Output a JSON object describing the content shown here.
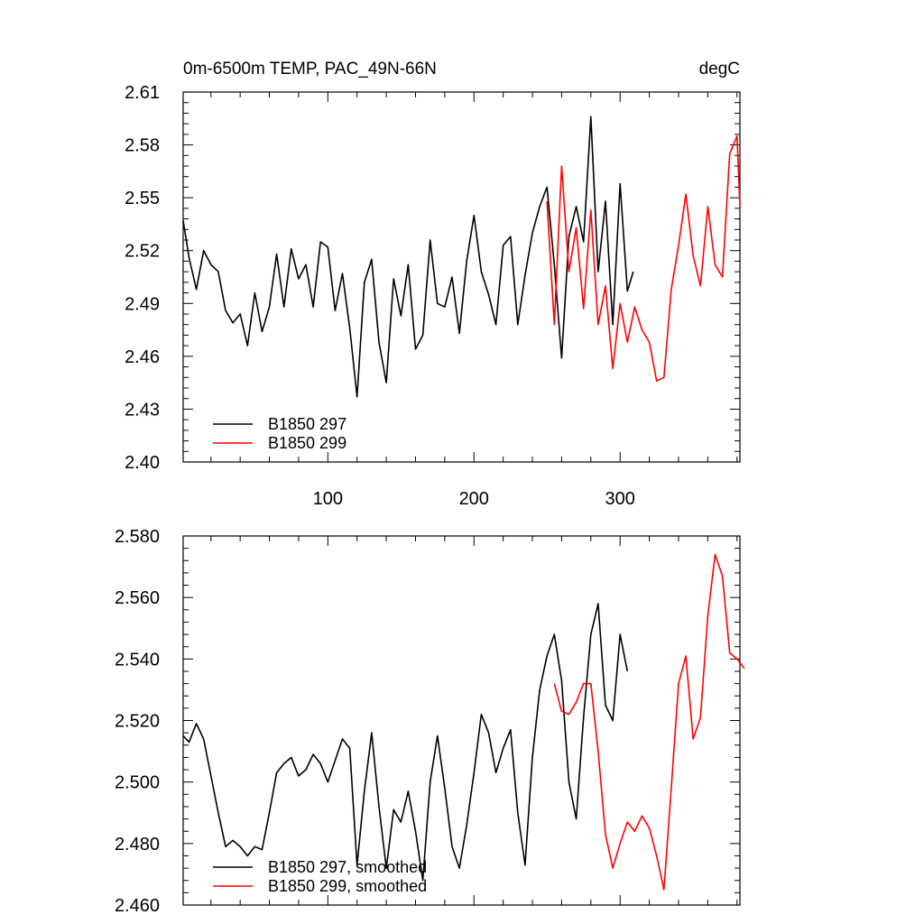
{
  "chart_data": [
    {
      "type": "line",
      "title": "0m-6500m TEMP, PAC_49N-66N",
      "units": "degC",
      "xlim": [
        1,
        382
      ],
      "ylim": [
        2.4,
        2.61
      ],
      "x_ticks": [
        100,
        200,
        300
      ],
      "y_ticks": [
        "2.40",
        "2.43",
        "2.46",
        "2.49",
        "2.52",
        "2.55",
        "2.58",
        "2.61"
      ],
      "legend": "bottom-left",
      "series": [
        {
          "name": "B1850 297",
          "color": "#000000",
          "x": [
            1,
            5,
            10,
            15,
            20,
            25,
            30,
            35,
            40,
            45,
            50,
            55,
            60,
            65,
            70,
            75,
            80,
            85,
            90,
            95,
            100,
            105,
            110,
            115,
            120,
            125,
            130,
            135,
            140,
            145,
            150,
            155,
            160,
            165,
            170,
            175,
            180,
            185,
            190,
            195,
            200,
            205,
            210,
            215,
            220,
            225,
            230,
            235,
            240,
            245,
            250,
            255,
            260,
            265,
            270,
            275,
            280,
            285,
            290,
            295,
            300,
            305,
            309
          ],
          "values": [
            2.537,
            2.516,
            2.498,
            2.52,
            2.512,
            2.508,
            2.486,
            2.479,
            2.484,
            2.466,
            2.496,
            2.474,
            2.488,
            2.518,
            2.488,
            2.521,
            2.504,
            2.512,
            2.488,
            2.525,
            2.522,
            2.486,
            2.507,
            2.476,
            2.437,
            2.502,
            2.515,
            2.468,
            2.445,
            2.504,
            2.483,
            2.512,
            2.464,
            2.472,
            2.526,
            2.49,
            2.488,
            2.505,
            2.473,
            2.514,
            2.54,
            2.508,
            2.495,
            2.478,
            2.523,
            2.528,
            2.478,
            2.506,
            2.53,
            2.545,
            2.556,
            2.512,
            2.459,
            2.528,
            2.545,
            2.525,
            2.596,
            2.508,
            2.548,
            2.478,
            2.558,
            2.497,
            2.508
          ]
        },
        {
          "name": "B1850 299",
          "color": "#ff0000",
          "x": [
            250,
            255,
            260,
            265,
            270,
            275,
            280,
            285,
            290,
            295,
            300,
            305,
            310,
            315,
            320,
            325,
            330,
            335,
            340,
            345,
            350,
            355,
            360,
            365,
            370,
            375,
            380,
            382
          ],
          "values": [
            2.548,
            2.478,
            2.568,
            2.508,
            2.533,
            2.487,
            2.543,
            2.478,
            2.5,
            2.453,
            2.49,
            2.468,
            2.488,
            2.475,
            2.468,
            2.446,
            2.448,
            2.498,
            2.523,
            2.552,
            2.517,
            2.5,
            2.545,
            2.512,
            2.505,
            2.575,
            2.585,
            2.545
          ]
        }
      ]
    },
    {
      "type": "line",
      "xlim": [
        1,
        382
      ],
      "ylim": [
        2.46,
        2.58
      ],
      "y_ticks": [
        "2.460",
        "2.480",
        "2.500",
        "2.520",
        "2.540",
        "2.560",
        "2.580"
      ],
      "legend": "bottom-left",
      "series": [
        {
          "name": "B1850 297, smoothed",
          "color": "#000000",
          "x": [
            1,
            5,
            10,
            15,
            20,
            25,
            30,
            35,
            40,
            45,
            50,
            55,
            60,
            65,
            70,
            75,
            80,
            85,
            90,
            95,
            100,
            105,
            110,
            115,
            120,
            125,
            130,
            135,
            140,
            145,
            150,
            155,
            160,
            165,
            170,
            175,
            180,
            185,
            190,
            195,
            200,
            205,
            210,
            215,
            220,
            225,
            230,
            235,
            240,
            245,
            250,
            255,
            260,
            265,
            270,
            275,
            280,
            285,
            290,
            295,
            300,
            305
          ],
          "values": [
            2.515,
            2.513,
            2.519,
            2.514,
            2.502,
            2.49,
            2.479,
            2.481,
            2.479,
            2.476,
            2.479,
            2.478,
            2.49,
            2.503,
            2.506,
            2.508,
            2.502,
            2.504,
            2.509,
            2.506,
            2.5,
            2.507,
            2.514,
            2.511,
            2.473,
            2.497,
            2.516,
            2.492,
            2.472,
            2.491,
            2.487,
            2.497,
            2.484,
            2.468,
            2.5,
            2.515,
            2.498,
            2.479,
            2.472,
            2.486,
            2.503,
            2.522,
            2.516,
            2.503,
            2.511,
            2.517,
            2.49,
            2.473,
            2.508,
            2.53,
            2.541,
            2.548,
            2.533,
            2.5,
            2.488,
            2.521,
            2.548,
            2.558,
            2.525,
            2.52,
            2.548,
            2.536
          ]
        },
        {
          "name": "B1850 299, smoothed",
          "color": "#ff0000",
          "x": [
            255,
            260,
            265,
            270,
            275,
            280,
            285,
            290,
            295,
            300,
            305,
            310,
            315,
            320,
            325,
            330,
            335,
            340,
            345,
            350,
            355,
            360,
            365,
            370,
            375,
            380,
            385
          ],
          "values": [
            2.532,
            2.523,
            2.522,
            2.526,
            2.532,
            2.532,
            2.51,
            2.483,
            2.472,
            2.48,
            2.487,
            2.484,
            2.489,
            2.485,
            2.476,
            2.465,
            2.498,
            2.532,
            2.541,
            2.514,
            2.521,
            2.554,
            2.574,
            2.567,
            2.542,
            2.54,
            2.537
          ]
        }
      ]
    }
  ]
}
